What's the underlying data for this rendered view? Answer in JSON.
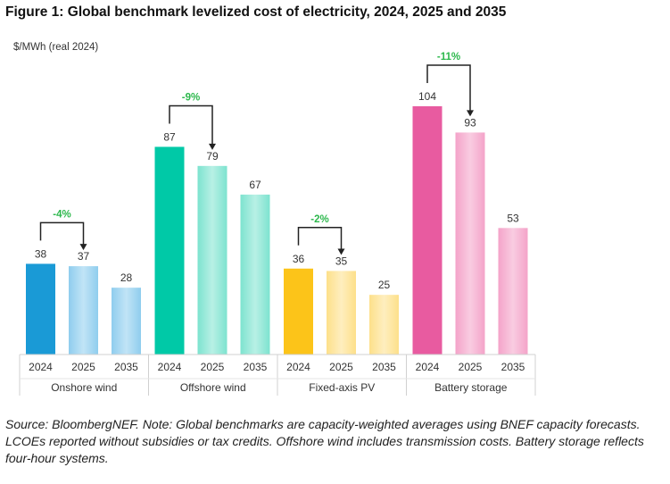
{
  "chart_data": {
    "type": "bar",
    "title": "Figure 1: Global benchmark levelized cost of electricity, 2024, 2025 and 2035",
    "ylabel": "$/MWh (real 2024)",
    "ylim": [
      0,
      104
    ],
    "grid": false,
    "groups": [
      {
        "name": "Onshore wind",
        "years": [
          "2024",
          "2025",
          "2035"
        ],
        "values": [
          38,
          37,
          28
        ],
        "change": "-4%",
        "colors": [
          "#1a9ad6",
          "#8fcdee"
        ]
      },
      {
        "name": "Offshore wind",
        "years": [
          "2024",
          "2025",
          "2035"
        ],
        "values": [
          87,
          79,
          67
        ],
        "change": "-9%",
        "colors": [
          "#00c9a7",
          "#7de3cf"
        ]
      },
      {
        "name": "Fixed-axis PV",
        "years": [
          "2024",
          "2025",
          "2035"
        ],
        "values": [
          36,
          35,
          25
        ],
        "change": "-2%",
        "colors": [
          "#fcc419",
          "#fde08a"
        ]
      },
      {
        "name": "Battery storage",
        "years": [
          "2024",
          "2025",
          "2035"
        ],
        "values": [
          104,
          93,
          53
        ],
        "change": "-11%",
        "colors": [
          "#e85ba0",
          "#f4a3c9"
        ]
      }
    ],
    "change_color": "#2db84d"
  },
  "note": "Source: BloombergNEF. Note: Global benchmarks are capacity-weighted averages using BNEF capacity forecasts. LCOEs reported without subsidies or tax credits. Offshore wind includes transmission costs. Battery storage reflects four-hour systems."
}
